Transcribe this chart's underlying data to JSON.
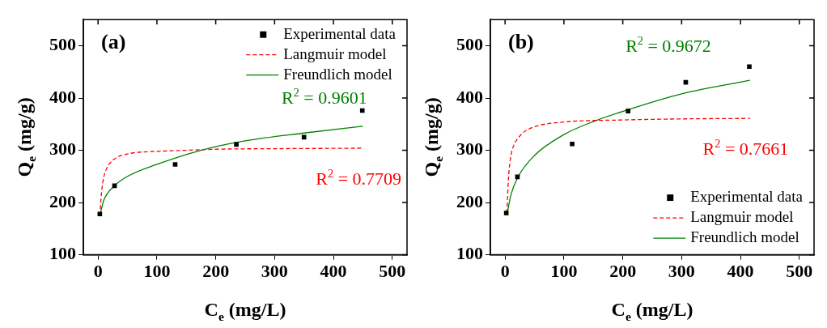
{
  "chart_data": [
    {
      "type": "scatter",
      "title": "(a)",
      "xlabel": "C$_{e}$ (mg/L)",
      "ylabel": "Q$_{e}$ (mg/g)",
      "xlim": [
        -25,
        525
      ],
      "xticks": [
        0,
        100,
        200,
        300,
        400,
        500
      ],
      "ylim": [
        100,
        550
      ],
      "yticks": [
        100,
        200,
        300,
        400,
        500
      ],
      "grid": false,
      "legend": "top right",
      "series": [
        {
          "name": "Experimental data",
          "type": "scatter",
          "marker": "square",
          "color": "#000000",
          "x": [
            3,
            28,
            131,
            235,
            350,
            449
          ],
          "values": [
            178,
            232,
            273,
            311,
            325,
            376
          ]
        },
        {
          "name": "Langmuir model",
          "type": "line",
          "line_style": "dashed",
          "color": "#ff0000",
          "x": [
            3,
            6,
            10,
            15,
            20,
            30,
            40,
            60,
            100,
            150,
            200,
            300,
            450
          ],
          "values": [
            175,
            220,
            250,
            266,
            275,
            285,
            290,
            295,
            298,
            300,
            302,
            303,
            304
          ]
        },
        {
          "name": "Freundlich model",
          "type": "line",
          "line_style": "solid",
          "color": "#008000",
          "x": [
            3,
            10,
            28,
            50,
            100,
            175,
            250,
            350,
            450
          ],
          "values": [
            175,
            205,
            232,
            250,
            273,
            300,
            318,
            333,
            346
          ]
        }
      ],
      "annotations": [
        "R$^{2}$ = 0.7709",
        "R$^{2}$ = 0.9601"
      ]
    },
    {
      "type": "scatter",
      "title": "(b)",
      "xlabel": "C$_{e}$ (mg/L)",
      "ylabel": "Q$_{e}$ (mg/g)",
      "xlim": [
        -25,
        525
      ],
      "xticks": [
        0,
        100,
        200,
        300,
        400,
        500
      ],
      "ylim": [
        100,
        550
      ],
      "yticks": [
        100,
        200,
        300,
        400,
        500
      ],
      "grid": false,
      "legend": "bottom right",
      "series": [
        {
          "name": "Experimental data",
          "type": "scatter",
          "marker": "square",
          "color": "#000000",
          "x": [
            2,
            21,
            114,
            209,
            307,
            415
          ],
          "values": [
            180,
            249,
            312,
            375,
            430,
            460
          ]
        },
        {
          "name": "Langmuir model",
          "type": "line",
          "line_style": "dashed",
          "color": "#ff0000",
          "x": [
            3,
            6,
            10,
            15,
            20,
            30,
            50,
            100,
            200,
            300,
            416
          ],
          "values": [
            180,
            250,
            290,
            310,
            320,
            333,
            345,
            354,
            358,
            360,
            361
          ]
        },
        {
          "name": "Freundlich model",
          "type": "line",
          "line_style": "solid",
          "color": "#008000",
          "x": [
            3,
            10,
            22,
            50,
            100,
            150,
            210,
            300,
            416
          ],
          "values": [
            175,
            215,
            249,
            290,
            330,
            355,
            378,
            408,
            434
          ]
        }
      ],
      "annotations": [
        "R$^{2}$ = 0.7661",
        "R$^{2}$ = 0.9672"
      ]
    }
  ]
}
